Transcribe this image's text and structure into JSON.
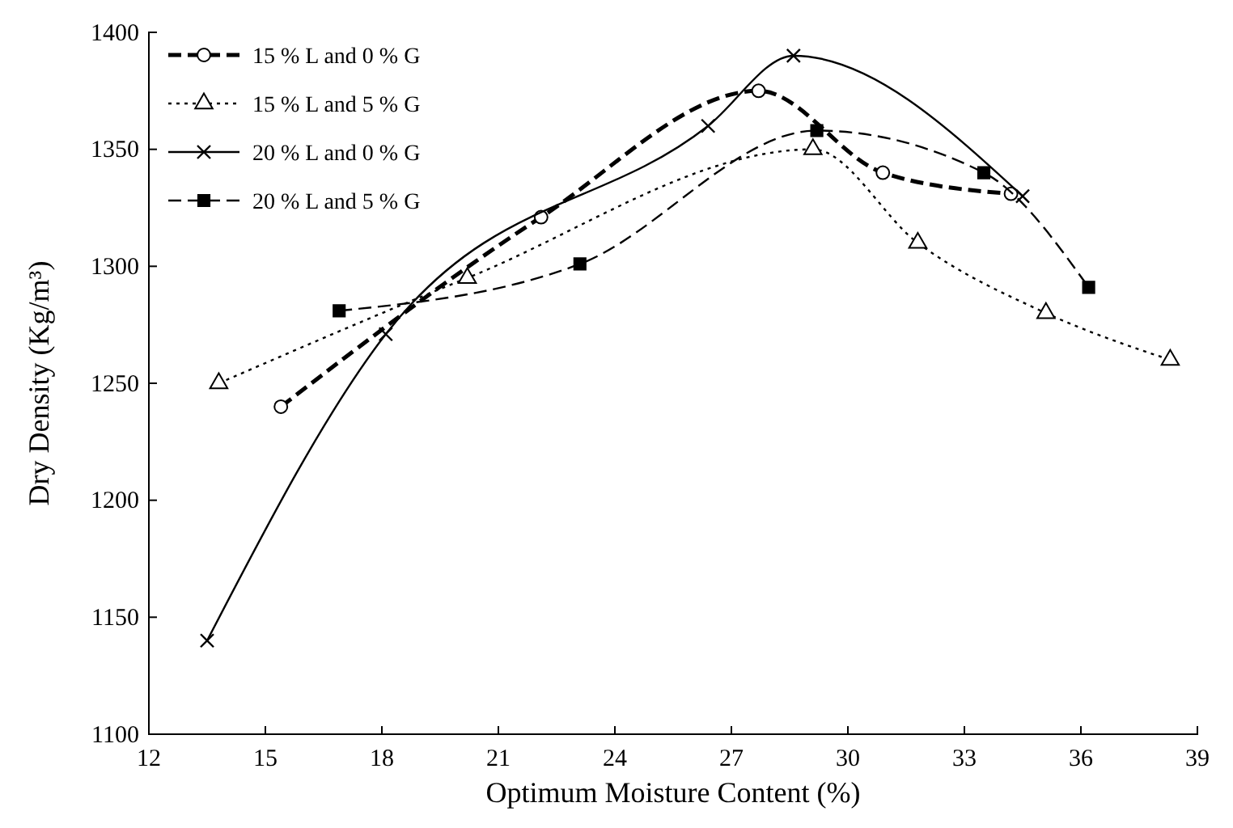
{
  "chart_data": {
    "type": "line",
    "xlabel": "Optimum Moisture Content (%)",
    "ylabel": "Dry Density (Kg/m³)",
    "xlim": [
      12,
      39
    ],
    "xticks": [
      12,
      15,
      18,
      21,
      24,
      27,
      30,
      33,
      36,
      39
    ],
    "ylim": [
      1100,
      1400
    ],
    "yticks": [
      1100,
      1150,
      1200,
      1250,
      1300,
      1350,
      1400
    ],
    "grid": false,
    "legend": "top left",
    "series": [
      {
        "name": "15 % L and 0 % G",
        "color": "#000000",
        "marker": "circle",
        "line_style": "dashed",
        "x": [
          15.4,
          22.1,
          27.7,
          30.9,
          34.2
        ],
        "values": [
          1240,
          1321,
          1375,
          1340,
          1331
        ]
      },
      {
        "name": "15 % L and 5 % G",
        "color": "#000000",
        "marker": "triangle",
        "line_style": "dotted",
        "x": [
          13.8,
          20.2,
          29.1,
          31.8,
          35.1,
          38.3
        ],
        "values": [
          1250,
          1295,
          1350,
          1310,
          1280,
          1260
        ]
      },
      {
        "name": "20 % L and 0 % G",
        "color": "#000000",
        "marker": "cross",
        "line_style": "solid",
        "x": [
          13.5,
          18.1,
          26.4,
          28.6,
          34.5
        ],
        "values": [
          1140,
          1271,
          1360,
          1390,
          1330
        ]
      },
      {
        "name": "20 % L and 5 % G",
        "color": "#000000",
        "marker": "square",
        "line_style": "dashed",
        "x": [
          16.9,
          23.1,
          29.2,
          33.5,
          36.2
        ],
        "values": [
          1281,
          1301,
          1358,
          1340,
          1291
        ]
      }
    ]
  }
}
